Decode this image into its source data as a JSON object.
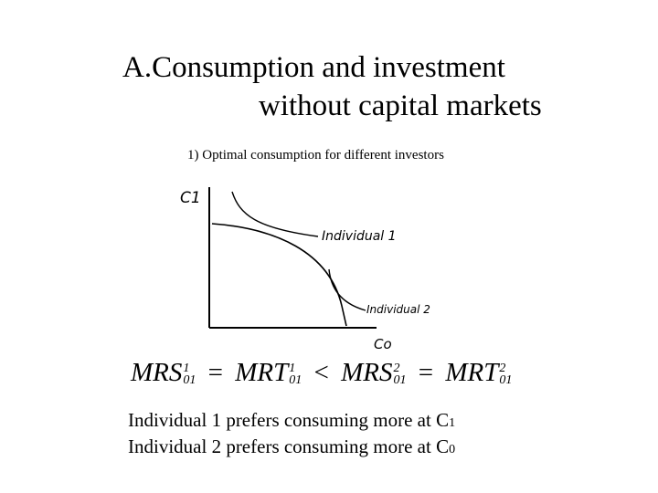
{
  "title": {
    "line1": "A.Consumption and investment",
    "line2": "without capital markets"
  },
  "subtitle": "1)   Optimal consumption for different investors",
  "graph": {
    "y_axis_label": "C1",
    "x_axis_label": "Co",
    "curve1_label": "Individual 1",
    "curve2_label": "Individual 2"
  },
  "equation": {
    "t1": "MRS",
    "t1_sup": "1",
    "t1_sub": "01",
    "op1": "=",
    "t2": "MRT",
    "t2_sup": "1",
    "t2_sub": "01",
    "op2": "<",
    "t3": "MRS",
    "t3_sup": "2",
    "t3_sub": "01",
    "op3": "=",
    "t4": "MRT",
    "t4_sup": "2",
    "t4_sub": "01"
  },
  "conclusions": [
    {
      "text": "Individual 1 prefers consuming more at C",
      "sub": "1"
    },
    {
      "text": "Individual 2 prefers consuming more at C",
      "sub": "0"
    }
  ]
}
